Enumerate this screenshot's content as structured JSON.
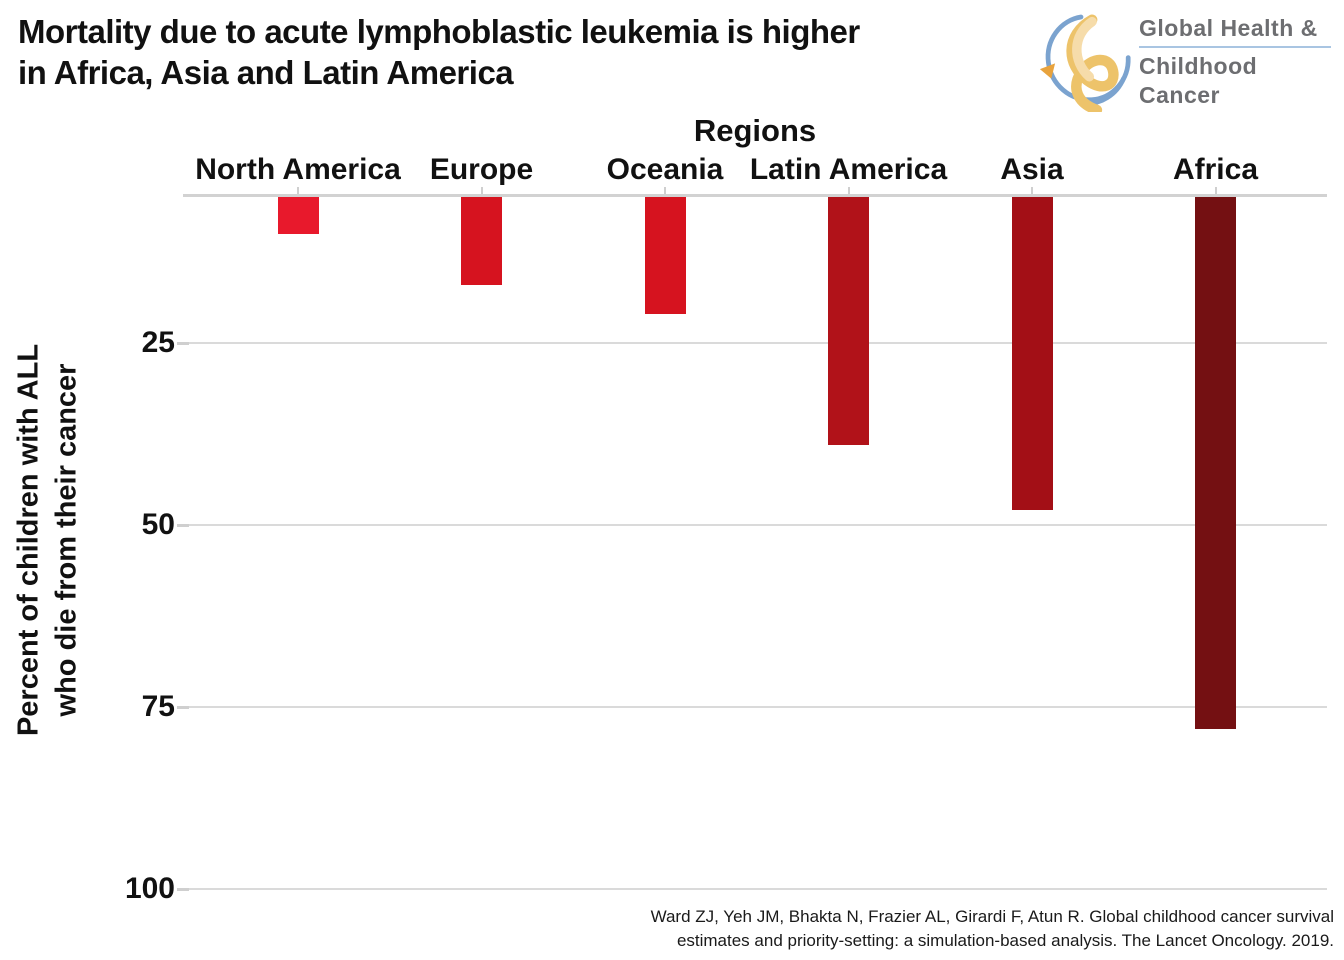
{
  "page": {
    "background": "#ffffff"
  },
  "header": {
    "title": "Mortality due to acute lymphoblastic leukemia is higher\nin Africa, Asia and Latin America"
  },
  "logo": {
    "line1": "Global Health &",
    "line2": "Childhood Cancer",
    "text_color": "#6d6e71",
    "divider_color": "#a9c5e2",
    "arc_blue": "#7ba3cf",
    "ribbon_gold": "#edc36a",
    "ribbon_gold_light": "#f6dcaa"
  },
  "chart_data": {
    "type": "bar",
    "style": "bars-hang-downward-from-top-axis",
    "title": "Regions",
    "xlabel": "Regions",
    "ylabel": "Percent of children with ALL\nwho die from their cancer",
    "categories": [
      "North America",
      "Europe",
      "Oceania",
      "Latin America",
      "Asia",
      "Africa"
    ],
    "values": [
      10,
      17,
      21,
      39,
      48,
      78
    ],
    "bar_colors": [
      "#e8192c",
      "#d6131f",
      "#d6131f",
      "#b11219",
      "#a30f16",
      "#741012"
    ],
    "yticks": [
      25,
      50,
      75,
      100
    ],
    "ylim": [
      5,
      103
    ],
    "axis_reversed": true,
    "grid": true,
    "legend": "none"
  },
  "citation": {
    "text": "Ward ZJ, Yeh JM, Bhakta N, Frazier AL, Girardi F, Atun R. Global childhood cancer survival\nestimates and priority-setting: a simulation-based analysis. The Lancet Oncology. 2019."
  }
}
